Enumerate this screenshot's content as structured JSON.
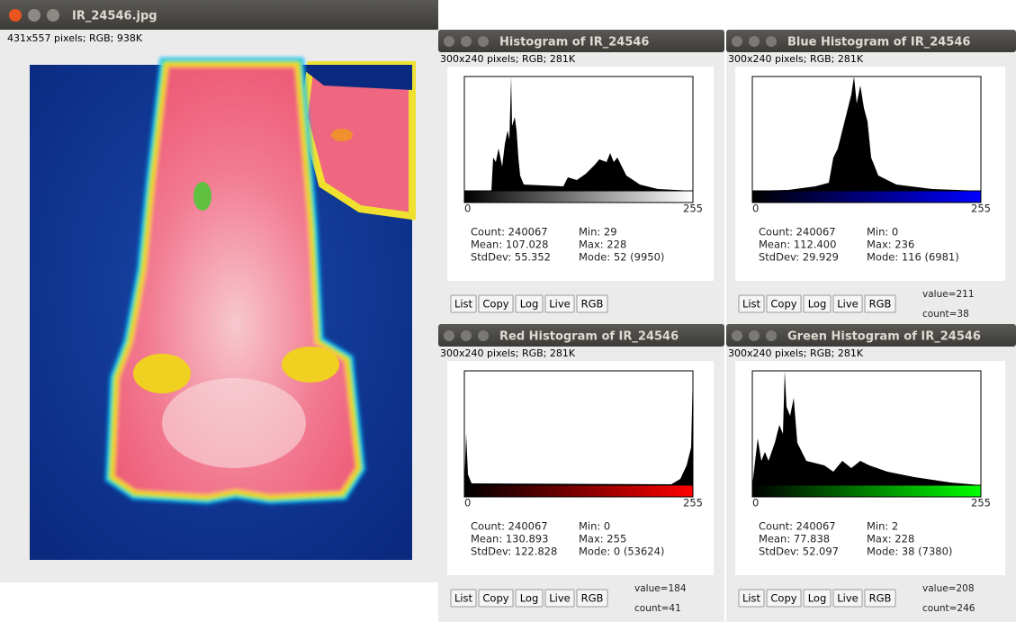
{
  "main_window": {
    "title": "IR_24546.jpg",
    "info": "431x557 pixels; RGB; 938K"
  },
  "histograms": [
    {
      "title": "Histogram of IR_24546",
      "info": "300x240 pixels; RGB; 281K",
      "bar_color": "#ffffff",
      "axis_min": "0",
      "axis_max": "255",
      "stats_left": [
        "Count: 240067",
        "Mean: 107.028",
        "StdDev: 55.352"
      ],
      "stats_right": [
        "Min: 29",
        "Max: 228",
        "Mode: 52 (9950)"
      ],
      "buttons": [
        "List",
        "Copy",
        "Log",
        "Live",
        "RGB"
      ]
    },
    {
      "title": "Blue Histogram of IR_24546",
      "info": "300x240 pixels; RGB; 281K",
      "bar_color": "#0000ff",
      "axis_min": "0",
      "axis_max": "255",
      "stats_left": [
        "Count: 240067",
        "Mean: 112.400",
        "StdDev: 29.929"
      ],
      "stats_right": [
        "Min: 0",
        "Max: 236",
        "Mode: 116 (6981)"
      ],
      "buttons": [
        "List",
        "Copy",
        "Log",
        "Live",
        "RGB"
      ],
      "value": "value=211",
      "count": "count=38"
    },
    {
      "title": "Red Histogram of IR_24546",
      "info": "300x240 pixels; RGB; 281K",
      "bar_color": "#ff0000",
      "axis_min": "0",
      "axis_max": "255",
      "stats_left": [
        "Count: 240067",
        "Mean: 130.893",
        "StdDev: 122.828"
      ],
      "stats_right": [
        "Min: 0",
        "Max: 255",
        "Mode: 0 (53624)"
      ],
      "buttons": [
        "List",
        "Copy",
        "Log",
        "Live",
        "RGB"
      ],
      "value": "value=184",
      "count": "count=41"
    },
    {
      "title": "Green Histogram of IR_24546",
      "info": "300x240 pixels; RGB; 281K",
      "bar_color": "#00ff00",
      "axis_min": "0",
      "axis_max": "255",
      "stats_left": [
        "Count: 240067",
        "Mean: 77.838",
        "StdDev: 52.097"
      ],
      "stats_right": [
        "Min: 2",
        "Max: 228",
        "Mode: 38 (7380)"
      ],
      "buttons": [
        "List",
        "Copy",
        "Log",
        "Live",
        "RGB"
      ],
      "value": "value=208",
      "count": "count=246"
    }
  ]
}
